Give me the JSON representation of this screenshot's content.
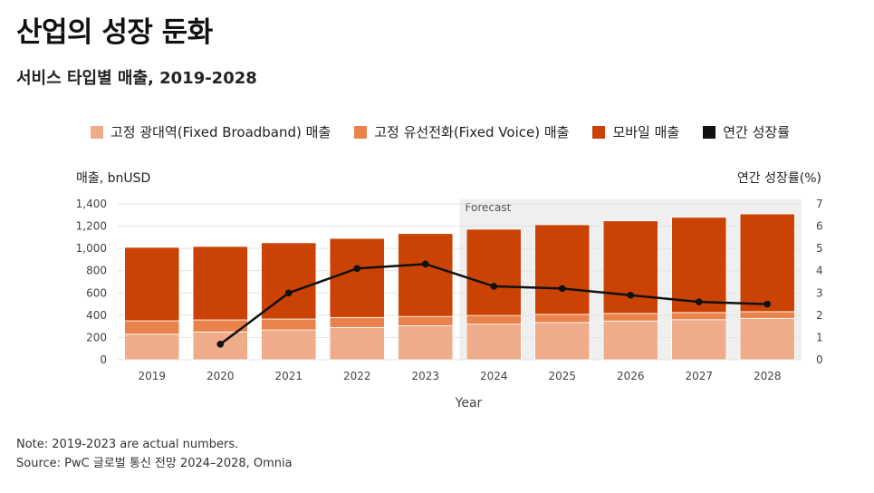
{
  "title": "산업의 성장 둔화",
  "subtitle": "서비스 타입별 매출, 2019-2028",
  "note": "Note: 2019-2023 are actual numbers.",
  "source": "Source: PwC 글로벌 통신 전망 2024–2028, Omnia",
  "colors": {
    "broadband": "#eeac8a",
    "voice": "#e9834b",
    "mobile": "#cb4304",
    "growth": "#111111",
    "forecast_bg": "#efefef"
  },
  "chart_data": {
    "type": "bar",
    "title": "서비스 타입별 매출, 2019-2028",
    "xlabel": "Year",
    "ylabel": "매출, bnUSD",
    "y2label": "연간 성장률(%)",
    "ylim": [
      0,
      1400
    ],
    "y2lim": [
      0,
      7
    ],
    "yticks": [
      "1,400",
      "1,200",
      "1,000",
      "800",
      "600",
      "400",
      "200",
      "0"
    ],
    "y2ticks": [
      "7",
      "6",
      "5",
      "4",
      "3",
      "2",
      "1",
      "0"
    ],
    "categories": [
      "2019",
      "2020",
      "2021",
      "2022",
      "2023",
      "2024",
      "2025",
      "2026",
      "2027",
      "2028"
    ],
    "forecast_label": "Forecast",
    "forecast_start_index": 5,
    "stacked": true,
    "series": [
      {
        "name": "고정 광대역(Fixed Broadband) 매출",
        "values": [
          230,
          250,
          268,
          290,
          305,
          320,
          335,
          348,
          360,
          372
        ]
      },
      {
        "name": "고정 유선전화(Fixed Voice) 매출",
        "values": [
          120,
          108,
          98,
          90,
          84,
          78,
          73,
          68,
          64,
          60
        ]
      },
      {
        "name": "모바일 매출",
        "values": [
          660,
          660,
          685,
          710,
          745,
          775,
          805,
          832,
          856,
          878
        ]
      }
    ],
    "line_series": {
      "name": "연간 성장률",
      "values": [
        null,
        0.7,
        3.0,
        4.1,
        4.3,
        3.3,
        3.2,
        2.9,
        2.6,
        2.5
      ]
    },
    "legend_position": "top"
  }
}
